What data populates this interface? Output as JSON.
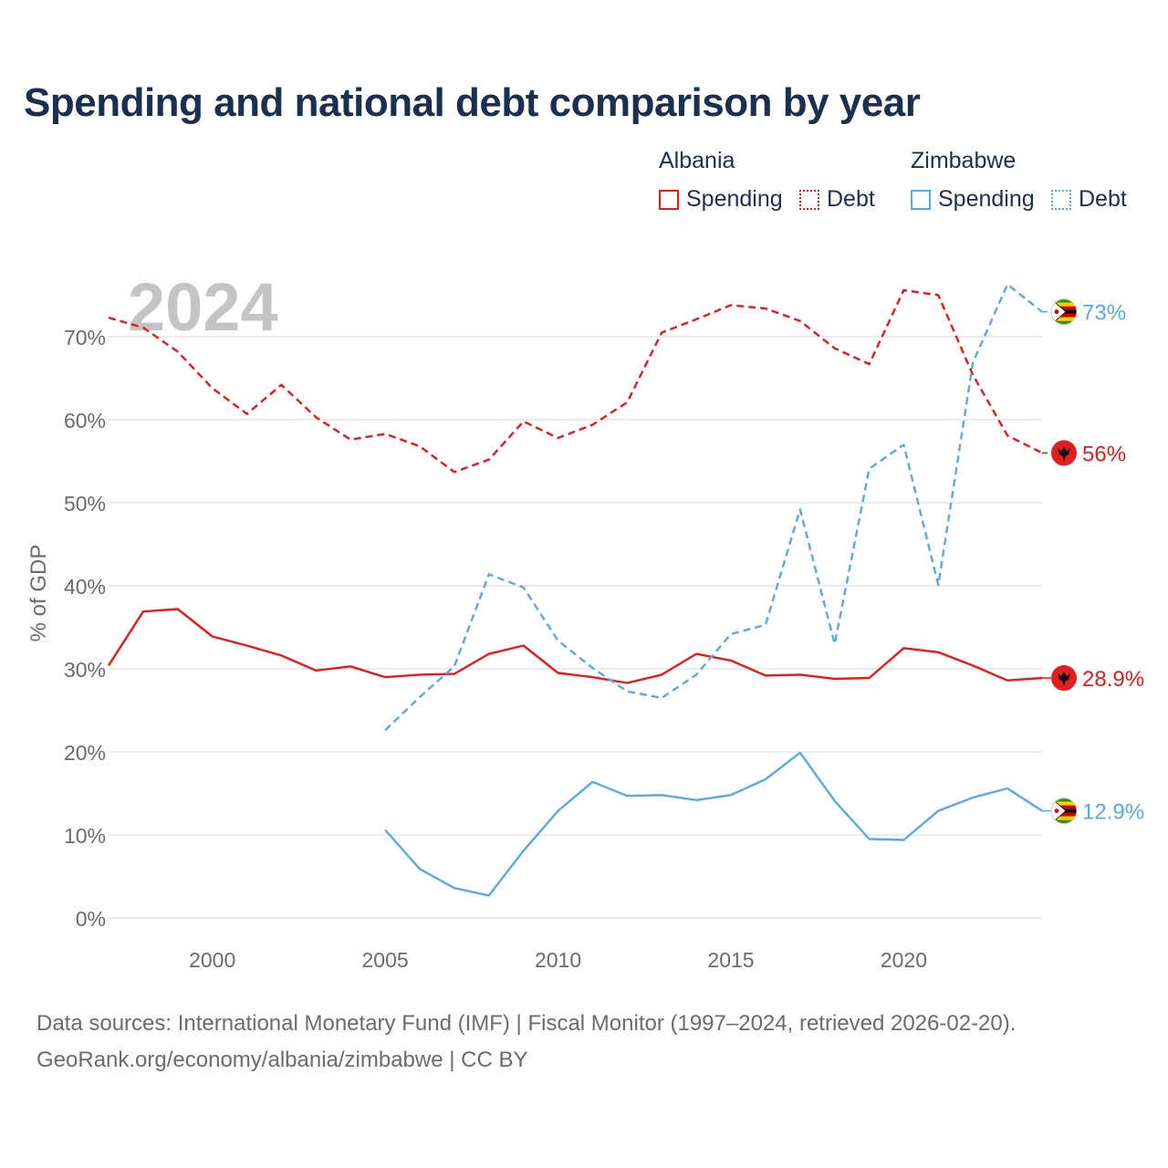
{
  "title": "Spending and national debt comparison by year",
  "year_watermark": "2024",
  "legend": [
    {
      "country": "Albania",
      "items": [
        {
          "label": "Spending",
          "color": "#e8191a",
          "style": "solid"
        },
        {
          "label": "Debt",
          "color": "#e8191a",
          "style": "dotted"
        }
      ]
    },
    {
      "country": "Zimbabwe",
      "items": [
        {
          "label": "Spending",
          "color": "#5aa9e6",
          "style": "solid"
        },
        {
          "label": "Debt",
          "color": "#5aa9e6",
          "style": "dotted"
        }
      ]
    }
  ],
  "footer": {
    "line1": "Data sources: International Monetary Fund (IMF) | Fiscal Monitor (1997–2024, retrieved 2026-02-20).",
    "line2": "GeoRank.org/economy/albania/zimbabwe | CC BY"
  },
  "chart_data": {
    "type": "line",
    "ylabel": "% of GDP",
    "xlim": [
      1997,
      2024
    ],
    "ylim": [
      0,
      70
    ],
    "x_ticks": [
      2000,
      2005,
      2010,
      2015,
      2020
    ],
    "y_ticks": [
      0,
      10,
      20,
      30,
      40,
      50,
      60,
      70
    ],
    "y_tick_labels": [
      "0%",
      "10%",
      "20%",
      "30%",
      "40%",
      "50%",
      "60%",
      "70%"
    ],
    "grid": true,
    "series": [
      {
        "name": "Albania Debt",
        "color": "#e8191a",
        "dash": true,
        "end_label": "56%",
        "flag": "albania",
        "x": [
          1997,
          1998,
          1999,
          2000,
          2001,
          2002,
          2003,
          2004,
          2005,
          2006,
          2007,
          2008,
          2009,
          2010,
          2011,
          2012,
          2013,
          2014,
          2015,
          2016,
          2017,
          2018,
          2019,
          2020,
          2021,
          2022,
          2023,
          2024
        ],
        "values": [
          72.3,
          71.1,
          68.2,
          63.8,
          60.7,
          64.2,
          60.3,
          57.6,
          58.3,
          56.8,
          53.7,
          55.2,
          59.8,
          57.8,
          59.4,
          62.1,
          70.5,
          72.1,
          73.8,
          73.4,
          71.9,
          68.6,
          66.7,
          75.6,
          75.0,
          65.4,
          58.1,
          56.0
        ]
      },
      {
        "name": "Albania Spending",
        "color": "#e8191a",
        "dash": false,
        "end_label": "28.9%",
        "flag": "albania",
        "x": [
          1997,
          1998,
          1999,
          2000,
          2001,
          2002,
          2003,
          2004,
          2005,
          2006,
          2007,
          2008,
          2009,
          2010,
          2011,
          2012,
          2013,
          2014,
          2015,
          2016,
          2017,
          2018,
          2019,
          2020,
          2021,
          2022,
          2023,
          2024
        ],
        "values": [
          30.4,
          36.9,
          37.2,
          33.9,
          32.8,
          31.6,
          29.8,
          30.3,
          29.0,
          29.3,
          29.4,
          31.8,
          32.8,
          29.5,
          29.0,
          28.3,
          29.3,
          31.8,
          31.0,
          29.2,
          29.3,
          28.8,
          28.9,
          32.5,
          32.0,
          30.4,
          28.6,
          28.9
        ]
      },
      {
        "name": "Zimbabwe Debt",
        "color": "#5aa9e6",
        "dash": true,
        "end_label": "73%",
        "flag": "zimbabwe",
        "x": [
          2005,
          2006,
          2007,
          2008,
          2009,
          2010,
          2011,
          2012,
          2013,
          2014,
          2015,
          2016,
          2017,
          2018,
          2019,
          2020,
          2021,
          2022,
          2023,
          2024
        ],
        "values": [
          22.6,
          26.6,
          30.3,
          41.4,
          39.8,
          33.4,
          30.1,
          27.3,
          26.5,
          29.3,
          34.2,
          35.3,
          49.2,
          33.0,
          54.1,
          57.0,
          40.1,
          66.9,
          76.3,
          73.0
        ]
      },
      {
        "name": "Zimbabwe Spending",
        "color": "#5aa9e6",
        "dash": false,
        "end_label": "12.9%",
        "flag": "zimbabwe",
        "x": [
          2005,
          2006,
          2007,
          2008,
          2009,
          2010,
          2011,
          2012,
          2013,
          2014,
          2015,
          2016,
          2017,
          2018,
          2019,
          2020,
          2021,
          2022,
          2023,
          2024
        ],
        "values": [
          10.6,
          5.9,
          3.6,
          2.7,
          8.1,
          12.9,
          16.4,
          14.7,
          14.8,
          14.2,
          14.8,
          16.7,
          19.9,
          14.1,
          9.5,
          9.4,
          12.9,
          14.5,
          15.6,
          12.9
        ]
      }
    ]
  }
}
